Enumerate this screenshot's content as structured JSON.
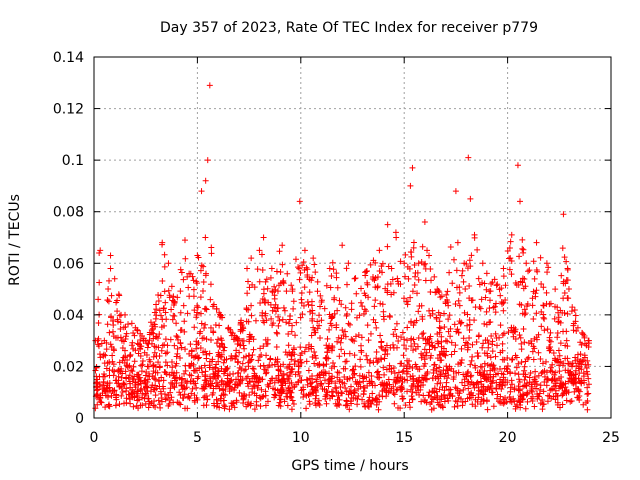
{
  "chart_data": {
    "type": "scatter",
    "title": "Day 357 of 2023, Rate Of TEC Index for receiver p779",
    "xlabel": "GPS time / hours",
    "ylabel": "ROTI / TECUs",
    "xlim": [
      0,
      25
    ],
    "ylim": [
      0,
      0.14
    ],
    "xticks": [
      0,
      5,
      10,
      15,
      20,
      25
    ],
    "yticks": [
      0,
      0.02,
      0.04,
      0.06,
      0.08,
      0.1,
      0.12,
      0.14
    ],
    "ytick_labels": [
      "0",
      "0.02",
      "0.04",
      "0.06",
      "0.08",
      "0.1",
      "0.12",
      "0.14"
    ],
    "grid": true,
    "marker": "+",
    "series": [
      {
        "color": "#ff0000",
        "note": "dense point cloud; representative envelope samples [hour, ROTI]",
        "points": [
          [
            0.1,
            0.012
          ],
          [
            0.2,
            0.046
          ],
          [
            0.25,
            0.064
          ],
          [
            0.3,
            0.065
          ],
          [
            0.5,
            0.03
          ],
          [
            0.8,
            0.063
          ],
          [
            1.0,
            0.054
          ],
          [
            1.2,
            0.048
          ],
          [
            1.5,
            0.04
          ],
          [
            2.0,
            0.035
          ],
          [
            2.5,
            0.03
          ],
          [
            3.0,
            0.044
          ],
          [
            3.3,
            0.068
          ],
          [
            3.6,
            0.06
          ],
          [
            3.9,
            0.045
          ],
          [
            4.4,
            0.069
          ],
          [
            4.6,
            0.056
          ],
          [
            5.0,
            0.063
          ],
          [
            5.2,
            0.088
          ],
          [
            5.4,
            0.092
          ],
          [
            5.5,
            0.1
          ],
          [
            5.6,
            0.129
          ],
          [
            5.8,
            0.044
          ],
          [
            6.5,
            0.035
          ],
          [
            7.0,
            0.03
          ],
          [
            7.4,
            0.058
          ],
          [
            7.6,
            0.062
          ],
          [
            8.0,
            0.065
          ],
          [
            8.2,
            0.07
          ],
          [
            8.6,
            0.058
          ],
          [
            9.1,
            0.067
          ],
          [
            9.6,
            0.05
          ],
          [
            9.95,
            0.084
          ],
          [
            10.2,
            0.065
          ],
          [
            10.6,
            0.062
          ],
          [
            11.0,
            0.045
          ],
          [
            11.4,
            0.058
          ],
          [
            12.0,
            0.067
          ],
          [
            12.3,
            0.06
          ],
          [
            12.6,
            0.054
          ],
          [
            13.2,
            0.057
          ],
          [
            13.8,
            0.065
          ],
          [
            14.2,
            0.075
          ],
          [
            14.6,
            0.072
          ],
          [
            15.0,
            0.06
          ],
          [
            15.3,
            0.09
          ],
          [
            15.4,
            0.097
          ],
          [
            15.7,
            0.06
          ],
          [
            16.0,
            0.076
          ],
          [
            16.2,
            0.063
          ],
          [
            16.6,
            0.05
          ],
          [
            17.0,
            0.045
          ],
          [
            17.5,
            0.088
          ],
          [
            17.9,
            0.06
          ],
          [
            18.1,
            0.101
          ],
          [
            18.2,
            0.085
          ],
          [
            18.4,
            0.071
          ],
          [
            18.8,
            0.06
          ],
          [
            19.2,
            0.052
          ],
          [
            19.8,
            0.058
          ],
          [
            20.2,
            0.071
          ],
          [
            20.5,
            0.098
          ],
          [
            20.6,
            0.084
          ],
          [
            20.9,
            0.06
          ],
          [
            21.4,
            0.068
          ],
          [
            21.9,
            0.06
          ],
          [
            22.3,
            0.05
          ],
          [
            22.7,
            0.079
          ],
          [
            22.9,
            0.058
          ],
          [
            23.4,
            0.035
          ],
          [
            23.9,
            0.03
          ]
        ]
      }
    ]
  }
}
